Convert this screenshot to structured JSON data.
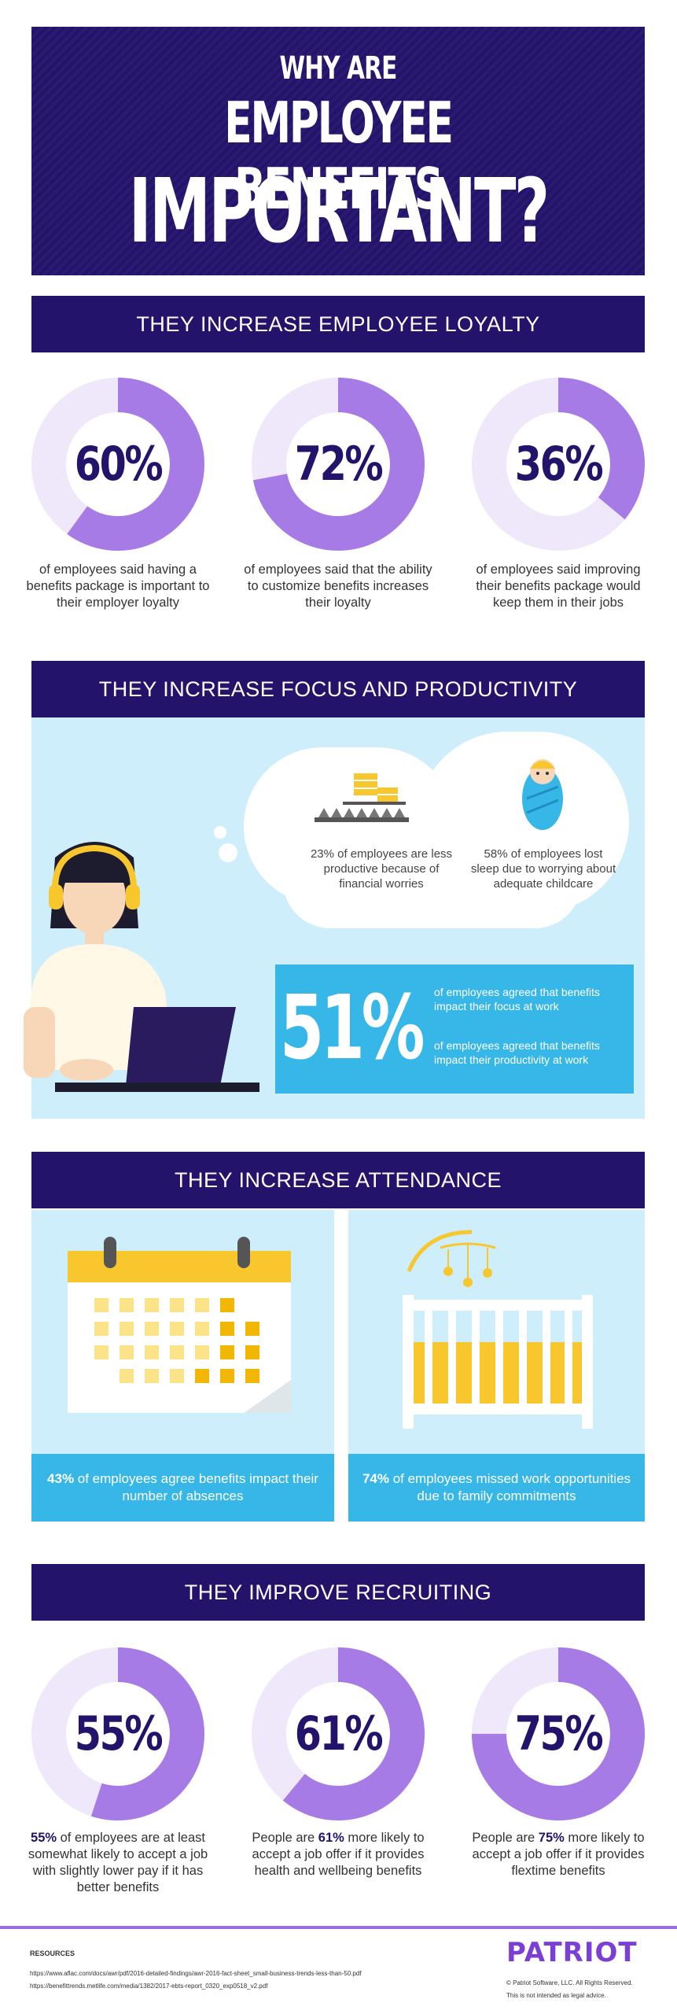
{
  "hero": {
    "line1": "WHY ARE",
    "line2": "EMPLOYEE BENEFITS",
    "line3": "IMPORTANT?"
  },
  "loyalty": {
    "heading": "THEY INCREASE EMPLOYEE LOYALTY",
    "stats": [
      {
        "value": "60%",
        "percent": 60,
        "caption": "of employees said having a benefits package is important to their employer loyalty"
      },
      {
        "value": "72%",
        "percent": 72,
        "caption": "of employees said that the ability to customize benefits increases their loyalty"
      },
      {
        "value": "36%",
        "percent": 36,
        "caption": "of employees said improving their benefits package would keep them in their jobs"
      }
    ]
  },
  "focus": {
    "heading": "THEY INCREASE FOCUS AND PRODUCTIVITY",
    "cloud_left": "23% of employees are less productive because of financial worries",
    "cloud_right": "58% of employees lost sleep due to worrying about adequate childcare",
    "big_value": "51%",
    "line1": "of employees agreed that benefits impact their focus at work",
    "line2": "of employees agreed that benefits impact their productivity at work"
  },
  "attendance": {
    "heading": "THEY INCREASE ATTENDANCE",
    "left_strong": "43%",
    "left_text": " of employees agree benefits impact their number of absences",
    "right_strong": "74%",
    "right_text": " of employees missed work opportunities due to family commitments"
  },
  "recruiting": {
    "heading": "THEY IMPROVE RECRUITING",
    "stats": [
      {
        "value": "55%",
        "percent": 55,
        "strong": "55%",
        "pre": "",
        "post": " of employees are at least somewhat likely to accept a job with slightly lower pay if it has better benefits"
      },
      {
        "value": "61%",
        "percent": 61,
        "strong": "61%",
        "pre": "People are ",
        "post": " more likely to accept a job offer if it provides health and wellbeing benefits"
      },
      {
        "value": "75%",
        "percent": 75,
        "strong": "75%",
        "pre": "People are ",
        "post": " more likely to accept a job offer if it provides flextime benefits"
      }
    ]
  },
  "footer": {
    "resources_label": "RESOURCES",
    "resource1": "https://www.aflac.com/docs/awr/pdf/2016-detailed-findings/awr-2016-fact-sheet_small-business-trends-less-than-50.pdf",
    "resource2": "https://benefittrends.metlife.com/media/1382/2017-ebts-report_0320_exp0518_v2.pdf",
    "brand": "PATRIOT",
    "copyright": "© Patriot Software, LLC. All Rights Reserved.",
    "disclaimer": "This is not intended as legal advice."
  },
  "colors": {
    "navy": "#23136b",
    "purple": "#a77be6",
    "light_ring": "#efe8fb",
    "sky": "#cdeefa",
    "blue": "#37b7e7",
    "yellow": "#f7c72d"
  }
}
